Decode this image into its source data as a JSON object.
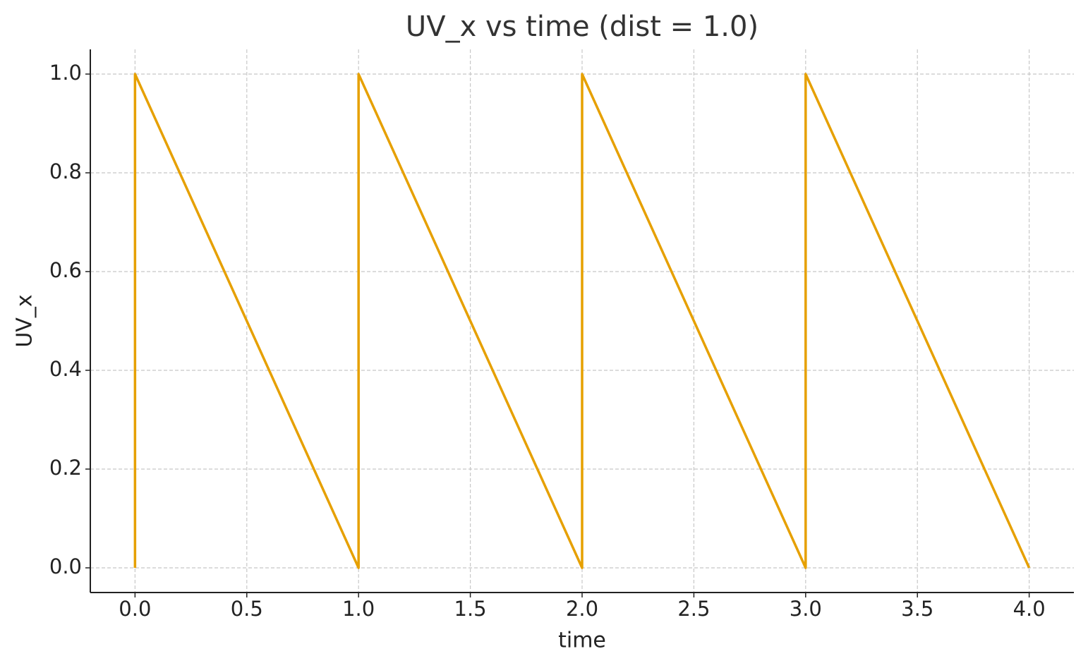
{
  "chart_data": {
    "type": "line",
    "title": "UV_x vs time  (dist = 1.0)",
    "x_label": "time",
    "y_label": "UV_x",
    "series": [
      {
        "name": "UV_x",
        "color": "#e6a000",
        "x": [
          0,
          0,
          1,
          1,
          2,
          2,
          3,
          3,
          4
        ],
        "values": [
          0,
          1,
          0,
          1,
          0,
          1,
          0,
          1,
          0
        ]
      }
    ],
    "xlim": [
      -0.2,
      4.2
    ],
    "ylim": [
      -0.05,
      1.05
    ],
    "xticks": [
      {
        "value": 0,
        "label": "0.0"
      },
      {
        "value": 0.5,
        "label": "0.5"
      },
      {
        "value": 1,
        "label": "1.0"
      },
      {
        "value": 1.5,
        "label": "1.5"
      },
      {
        "value": 2,
        "label": "2.0"
      },
      {
        "value": 2.5,
        "label": "2.5"
      },
      {
        "value": 3,
        "label": "3.0"
      },
      {
        "value": 3.5,
        "label": "3.5"
      },
      {
        "value": 4,
        "label": "4.0"
      }
    ],
    "yticks": [
      {
        "value": 0,
        "label": "0.0"
      },
      {
        "value": 0.2,
        "label": "0.2"
      },
      {
        "value": 0.4,
        "label": "0.4"
      },
      {
        "value": 0.6,
        "label": "0.6"
      },
      {
        "value": 0.8,
        "label": "0.8"
      },
      {
        "value": 1,
        "label": "1.0"
      }
    ],
    "grid": true
  }
}
